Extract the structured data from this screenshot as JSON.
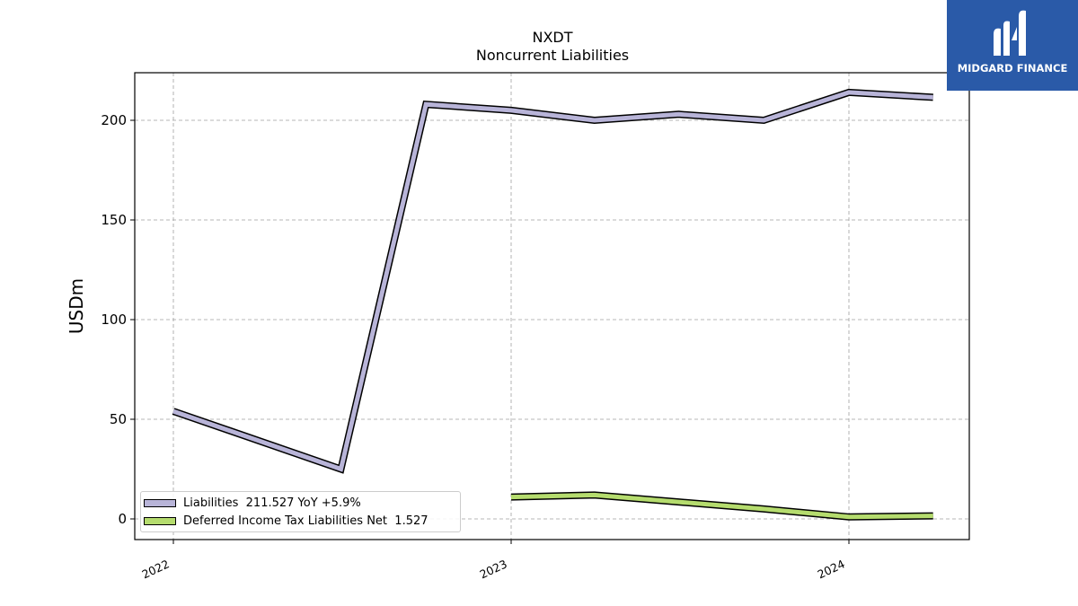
{
  "chart_data": {
    "type": "line",
    "title": "NXDT",
    "subtitle": "Noncurrent  Liabilities",
    "ylabel": "USDm",
    "xlabel": "",
    "ylim": [
      -10,
      224
    ],
    "x_ticks": [
      "2022",
      "2023",
      "2024"
    ],
    "y_ticks": [
      0,
      50,
      100,
      150,
      200
    ],
    "grid": true,
    "legend_position": "lower-left",
    "series": [
      {
        "name": "Liabilities  211.527 YoY +5.9%",
        "color": "#b8b4d8",
        "points": [
          {
            "date": "2022-01-01",
            "value": 54
          },
          {
            "date": "2022-07-01",
            "value": 25
          },
          {
            "date": "2022-10-01",
            "value": 208
          },
          {
            "date": "2023-01-01",
            "value": 205
          },
          {
            "date": "2023-04-01",
            "value": 200
          },
          {
            "date": "2023-07-01",
            "value": 203
          },
          {
            "date": "2023-10-01",
            "value": 200
          },
          {
            "date": "2024-01-01",
            "value": 214
          },
          {
            "date": "2024-04-01",
            "value": 211.527
          }
        ]
      },
      {
        "name": "Deferred Income Tax Liabilities Net  1.527",
        "color": "#b5dc6e",
        "points": [
          {
            "date": "2023-01-01",
            "value": 11
          },
          {
            "date": "2023-04-01",
            "value": 12
          },
          {
            "date": "2023-07-01",
            "value": 8.5
          },
          {
            "date": "2023-10-01",
            "value": 5
          },
          {
            "date": "2024-01-01",
            "value": 1
          },
          {
            "date": "2024-04-01",
            "value": 1.527
          }
        ]
      }
    ]
  },
  "logo": {
    "text": "MIDGARD FINANCE",
    "color": "#2a5aa8"
  }
}
